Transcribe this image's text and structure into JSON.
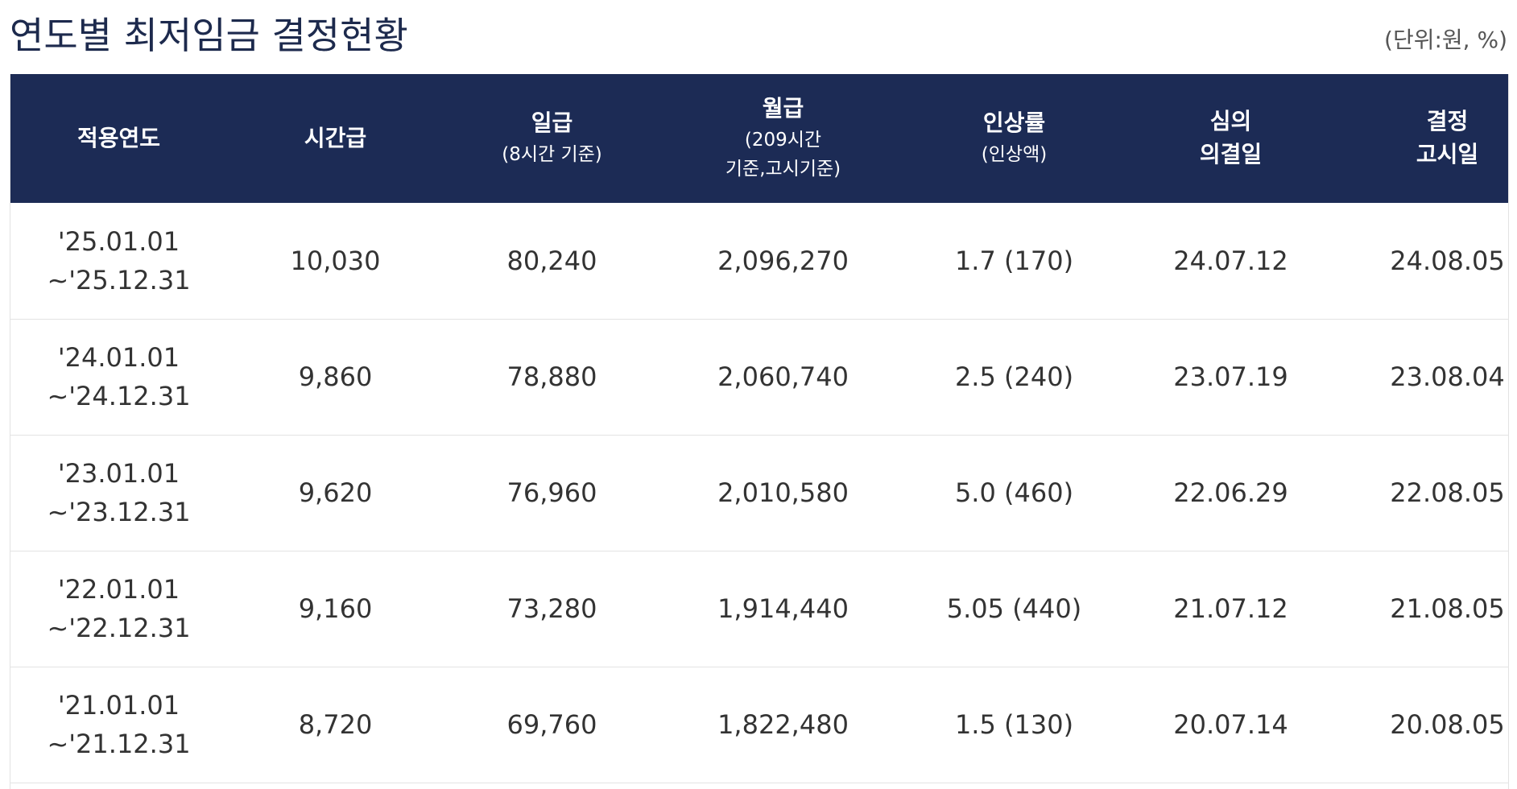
{
  "page": {
    "title": "연도별 최저임금 결정현황",
    "unit": "(단위:원, %)"
  },
  "table": {
    "headers": [
      {
        "main": "적용연도",
        "sub": ""
      },
      {
        "main": "시간급",
        "sub": ""
      },
      {
        "main": "일급",
        "sub": "(8시간 기준)"
      },
      {
        "main": "월급",
        "sub": "(209시간",
        "sub2": "기준,고시기준)"
      },
      {
        "main": "인상률",
        "sub": "(인상액)"
      },
      {
        "main": "심의",
        "main2": "의결일"
      },
      {
        "main": "결정",
        "main2": "고시일"
      }
    ],
    "rows": [
      {
        "period_start": "'25.01.01",
        "period_end": "~'25.12.31",
        "hourly": "10,030",
        "daily": "80,240",
        "monthly": "2,096,270",
        "increase": "1.7 (170)",
        "deliberation": "24.07.12",
        "notice": "24.08.05"
      },
      {
        "period_start": "'24.01.01",
        "period_end": "~'24.12.31",
        "hourly": "9,860",
        "daily": "78,880",
        "monthly": "2,060,740",
        "increase": "2.5 (240)",
        "deliberation": "23.07.19",
        "notice": "23.08.04"
      },
      {
        "period_start": "'23.01.01",
        "period_end": "~'23.12.31",
        "hourly": "9,620",
        "daily": "76,960",
        "monthly": "2,010,580",
        "increase": "5.0 (460)",
        "deliberation": "22.06.29",
        "notice": "22.08.05"
      },
      {
        "period_start": "'22.01.01",
        "period_end": "~'22.12.31",
        "hourly": "9,160",
        "daily": "73,280",
        "monthly": "1,914,440",
        "increase": "5.05 (440)",
        "deliberation": "21.07.12",
        "notice": "21.08.05"
      },
      {
        "period_start": "'21.01.01",
        "period_end": "~'21.12.31",
        "hourly": "8,720",
        "daily": "69,760",
        "monthly": "1,822,480",
        "increase": "1.5 (130)",
        "deliberation": "20.07.14",
        "notice": "20.08.05"
      }
    ]
  },
  "colors": {
    "header_bg": "#1c2b55",
    "title": "#1d2a4d",
    "row_border": "#e3e3e3"
  }
}
